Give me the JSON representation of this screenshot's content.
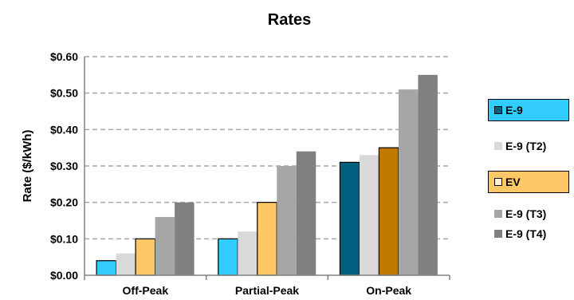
{
  "chart_data": {
    "type": "bar",
    "title": "Rates",
    "xlabel": "",
    "ylabel": "Rate ($/kWh)",
    "ylim": [
      0,
      0.6
    ],
    "yticks": [
      "$0.00",
      "$0.10",
      "$0.20",
      "$0.30",
      "$0.40",
      "$0.50",
      "$0.60"
    ],
    "grid": true,
    "legend_position": "right",
    "categories": [
      "Off-Peak",
      "Partial-Peak",
      "On-Peak"
    ],
    "series": [
      {
        "name": "E-9",
        "color_onpeak": "#005f7f",
        "color": "#33ccff",
        "values": [
          0.04,
          0.1,
          0.31
        ]
      },
      {
        "name": "E-9 (T2)",
        "color": "#d9d9d9",
        "values": [
          0.06,
          0.12,
          0.33
        ]
      },
      {
        "name": "EV",
        "color_onpeak": "#c07a00",
        "color": "#ffc866",
        "values": [
          0.1,
          0.2,
          0.35
        ]
      },
      {
        "name": "E-9 (T3)",
        "color": "#a6a6a6",
        "values": [
          0.16,
          0.3,
          0.51
        ]
      },
      {
        "name": "E-9 (T4)",
        "color": "#808080",
        "values": [
          0.2,
          0.34,
          0.55
        ]
      }
    ]
  },
  "legend": {
    "items": [
      {
        "label": "E-9",
        "box": "#33ccff",
        "swatch": "#005f7f",
        "highlight": true
      },
      {
        "label": "E-9 (T2)",
        "swatch": "#d9d9d9",
        "highlight": false
      },
      {
        "label": "EV",
        "box": "#ffc866",
        "swatch": "#fff1d6",
        "highlight": true
      },
      {
        "label": "E-9 (T3)",
        "swatch": "#a6a6a6",
        "highlight": false
      },
      {
        "label": "E-9 (T4)",
        "swatch": "#808080",
        "highlight": false
      }
    ]
  }
}
